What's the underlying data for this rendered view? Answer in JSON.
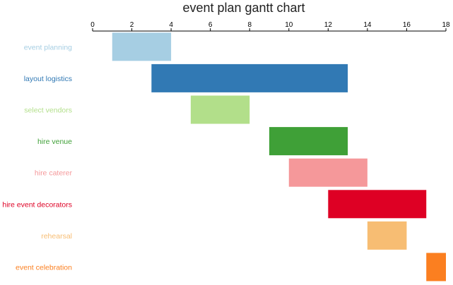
{
  "chart_data": {
    "type": "gantt",
    "title": "event plan gantt chart",
    "xlim": [
      0,
      18
    ],
    "x_ticks": [
      "0",
      "2",
      "4",
      "6",
      "8",
      "10",
      "12",
      "14",
      "16",
      "18"
    ],
    "tasks": [
      {
        "name": "event planning",
        "start": 1,
        "end": 4,
        "color": "#a6cee3"
      },
      {
        "name": "layout logistics",
        "start": 3,
        "end": 13,
        "color": "#3179b4"
      },
      {
        "name": "select vendors",
        "start": 5,
        "end": 8,
        "color": "#b2df8a"
      },
      {
        "name": "hire venue",
        "start": 9,
        "end": 13,
        "color": "#3fa037"
      },
      {
        "name": "hire caterer",
        "start": 10,
        "end": 14,
        "color": "#f5989a"
      },
      {
        "name": "hire event decorators",
        "start": 12,
        "end": 17,
        "color": "#de0024"
      },
      {
        "name": "rehearsal",
        "start": 14,
        "end": 16,
        "color": "#f7bd73"
      },
      {
        "name": "event celebration",
        "start": 17,
        "end": 18,
        "color": "#fb7f20"
      }
    ]
  }
}
